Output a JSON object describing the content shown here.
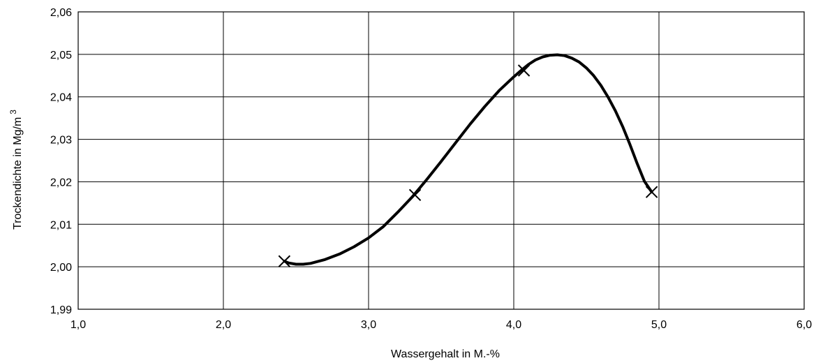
{
  "chart_data": {
    "type": "scatter",
    "xlabel": "Wassergehalt in M.-%",
    "ylabel": "Trockendichte in Mg/m",
    "ylabel_superscript": "3",
    "xlim": [
      1.0,
      6.0
    ],
    "ylim": [
      1.99,
      2.06
    ],
    "x_ticks": [
      "1,0",
      "2,0",
      "3,0",
      "4,0",
      "5,0",
      "6,0"
    ],
    "y_ticks": [
      "1,99",
      "2,00",
      "2,01",
      "2,02",
      "2,03",
      "2,04",
      "2,05",
      "2,06"
    ],
    "grid": true,
    "series": [
      {
        "x": [
          2.42,
          3.32,
          4.07,
          4.95
        ],
        "y": [
          2.0013,
          2.0169,
          2.0462,
          2.0176
        ]
      }
    ],
    "fit_curve": {
      "x": [
        2.42,
        2.45,
        2.5,
        2.55,
        2.6,
        2.7,
        2.8,
        2.9,
        3.0,
        3.1,
        3.2,
        3.3,
        3.4,
        3.5,
        3.6,
        3.7,
        3.8,
        3.9,
        4.0,
        4.05,
        4.1,
        4.15,
        4.2,
        4.25,
        4.3,
        4.35,
        4.4,
        4.45,
        4.5,
        4.55,
        4.6,
        4.65,
        4.7,
        4.75,
        4.8,
        4.85,
        4.9,
        4.95
      ],
      "y": [
        2.0013,
        2.0009,
        2.0006,
        2.0006,
        2.0008,
        2.0017,
        2.003,
        2.0047,
        2.0068,
        2.0094,
        2.0128,
        2.0164,
        2.0205,
        2.0248,
        2.0292,
        2.0336,
        2.0377,
        2.0415,
        2.0447,
        2.0462,
        2.0476,
        2.0487,
        2.0494,
        2.0498,
        2.0499,
        2.0497,
        2.0491,
        2.0482,
        2.0468,
        2.045,
        2.0427,
        2.0399,
        2.0367,
        2.033,
        2.0288,
        2.0243,
        2.0201,
        2.0176
      ]
    }
  }
}
